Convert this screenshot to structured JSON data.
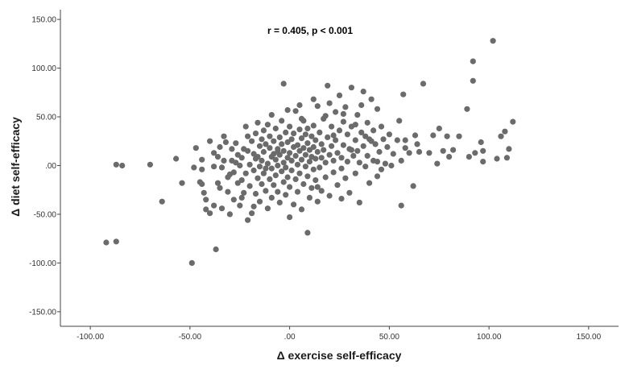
{
  "chart_data": {
    "type": "scatter",
    "annotation": "r = 0.405, p < 0.001",
    "xlabel": "Δ exercise self-efficacy",
    "ylabel": "Δ diet self-efficacy",
    "xlim": [
      -115,
      165
    ],
    "ylim": [
      -165,
      160
    ],
    "x_ticks": [
      -100,
      -50,
      0,
      50,
      100,
      150
    ],
    "x_tick_labels": [
      "-100.00",
      "-50.00",
      ".00",
      "50.00",
      "100.00",
      "150.00"
    ],
    "y_ticks": [
      150,
      100,
      50,
      0,
      -50,
      -100,
      -150
    ],
    "y_tick_labels": [
      "150.00",
      "100.00",
      "50.00",
      ".00",
      "-50.00",
      "-100.00",
      "-150.00"
    ],
    "grid": false,
    "legend": "none",
    "point_color": "#6b6b6b",
    "series": [
      {
        "points": [
          [
            -92,
            -79
          ],
          [
            -87,
            -78
          ],
          [
            -87,
            1
          ],
          [
            -84,
            0
          ],
          [
            -70,
            1
          ],
          [
            -64,
            -37
          ],
          [
            -57,
            7
          ],
          [
            -54,
            -18
          ],
          [
            -49,
            -100
          ],
          [
            -48,
            -2
          ],
          [
            -47,
            18
          ],
          [
            -45,
            -17
          ],
          [
            -44,
            6
          ],
          [
            -44,
            -4
          ],
          [
            -44,
            -19
          ],
          [
            -42,
            -35
          ],
          [
            -42,
            -45
          ],
          [
            -40,
            -49
          ],
          [
            -38,
            -1
          ],
          [
            -38,
            -41
          ],
          [
            -37,
            -86
          ],
          [
            -36,
            9
          ],
          [
            -35,
            -23
          ],
          [
            -34,
            -2
          ],
          [
            -34,
            -44
          ],
          [
            -33,
            5
          ],
          [
            -32,
            24
          ],
          [
            -31,
            -12
          ],
          [
            -31,
            -27
          ],
          [
            -30,
            -50
          ],
          [
            -29,
            17
          ],
          [
            -29,
            5
          ],
          [
            -28,
            -7
          ],
          [
            -28,
            -35
          ],
          [
            -27,
            23
          ],
          [
            -26,
            11
          ],
          [
            -26,
            -18
          ],
          [
            -25,
            0
          ],
          [
            -25,
            -41
          ],
          [
            -24,
            8
          ],
          [
            -24,
            -15
          ],
          [
            -23,
            17
          ],
          [
            -23,
            -28
          ],
          [
            -22,
            40
          ],
          [
            -22,
            -8
          ],
          [
            -21,
            -56
          ],
          [
            -21,
            30
          ],
          [
            -20,
            1
          ],
          [
            -20,
            -21
          ],
          [
            -19,
            25
          ],
          [
            -18,
            12
          ],
          [
            -18,
            -5
          ],
          [
            -18,
            -42
          ],
          [
            -17,
            33
          ],
          [
            -17,
            -29
          ],
          [
            -16,
            44
          ],
          [
            -16,
            9
          ],
          [
            -16,
            -13
          ],
          [
            -15,
            20
          ],
          [
            -15,
            -1
          ],
          [
            -15,
            -37
          ],
          [
            -14,
            27
          ],
          [
            -14,
            5
          ],
          [
            -14,
            -19
          ],
          [
            -13,
            36
          ],
          [
            -13,
            14
          ],
          [
            -13,
            -8
          ],
          [
            -12,
            22
          ],
          [
            -12,
            -26
          ],
          [
            -11,
            42
          ],
          [
            -11,
            2
          ],
          [
            -11,
            -44
          ],
          [
            -10,
            18
          ],
          [
            -10,
            -14
          ],
          [
            -10,
            30
          ],
          [
            -9,
            9
          ],
          [
            -9,
            -3
          ],
          [
            -9,
            -33
          ],
          [
            -8,
            25
          ],
          [
            -8,
            12
          ],
          [
            -8,
            -20
          ],
          [
            -7,
            6
          ],
          [
            -7,
            38
          ],
          [
            -7,
            -10
          ],
          [
            -6,
            17
          ],
          [
            -6,
            -27
          ],
          [
            -6,
            0
          ],
          [
            -5,
            29
          ],
          [
            -5,
            11
          ],
          [
            -5,
            -38
          ],
          [
            -4,
            22
          ],
          [
            -4,
            -6
          ],
          [
            -4,
            46
          ],
          [
            -3,
            3
          ],
          [
            -3,
            15
          ],
          [
            -3,
            -17
          ],
          [
            -2,
            34
          ],
          [
            -2,
            -2
          ],
          [
            -2,
            -30
          ],
          [
            -1,
            24
          ],
          [
            -1,
            8
          ],
          [
            -1,
            -12
          ],
          [
            0,
            40
          ],
          [
            0,
            13
          ],
          [
            0,
            -22
          ],
          [
            1,
            5
          ],
          [
            1,
            27
          ],
          [
            1,
            -5
          ],
          [
            2,
            19
          ],
          [
            2,
            -40
          ],
          [
            2,
            33
          ],
          [
            3,
            10
          ],
          [
            3,
            -14
          ],
          [
            3,
            56
          ],
          [
            4,
            21
          ],
          [
            4,
            1
          ],
          [
            4,
            -27
          ],
          [
            5,
            37
          ],
          [
            5,
            15
          ],
          [
            5,
            -8
          ],
          [
            6,
            28
          ],
          [
            6,
            6
          ],
          [
            6,
            -45
          ],
          [
            7,
            18
          ],
          [
            7,
            -19
          ],
          [
            7,
            46
          ],
          [
            8,
            11
          ],
          [
            8,
            -1
          ],
          [
            8,
            32
          ],
          [
            9,
            23
          ],
          [
            9,
            -11
          ],
          [
            9,
            -69
          ],
          [
            10,
            4
          ],
          [
            10,
            16
          ],
          [
            10,
            -33
          ],
          [
            11,
            30
          ],
          [
            11,
            9
          ],
          [
            11,
            -23
          ],
          [
            12,
            41
          ],
          [
            12,
            19
          ],
          [
            12,
            -4
          ],
          [
            13,
            26
          ],
          [
            13,
            7
          ],
          [
            13,
            -15
          ],
          [
            14,
            61
          ],
          [
            14,
            14
          ],
          [
            14,
            -37
          ],
          [
            15,
            34
          ],
          [
            15,
            -2
          ],
          [
            16,
            22
          ],
          [
            16,
            8
          ],
          [
            16,
            -26
          ],
          [
            17,
            48
          ],
          [
            17,
            16
          ],
          [
            18,
            3
          ],
          [
            18,
            -12
          ],
          [
            19,
            29
          ],
          [
            19,
            82
          ],
          [
            20,
            11
          ],
          [
            20,
            -31
          ],
          [
            21,
            40
          ],
          [
            21,
            20
          ],
          [
            22,
            5
          ],
          [
            22,
            -7
          ],
          [
            23,
            55
          ],
          [
            23,
            26
          ],
          [
            24,
            13
          ],
          [
            24,
            -20
          ],
          [
            25,
            36
          ],
          [
            25,
            72
          ],
          [
            26,
            8
          ],
          [
            26,
            -3
          ],
          [
            27,
            45
          ],
          [
            27,
            21
          ],
          [
            28,
            60
          ],
          [
            28,
            -13
          ],
          [
            29,
            32
          ],
          [
            29,
            4
          ],
          [
            30,
            17
          ],
          [
            30,
            -28
          ],
          [
            31,
            80
          ],
          [
            31,
            40
          ],
          [
            32,
            10
          ],
          [
            33,
            26
          ],
          [
            33,
            -8
          ],
          [
            34,
            52
          ],
          [
            34,
            15
          ],
          [
            35,
            3
          ],
          [
            35,
            -38
          ],
          [
            36,
            34
          ],
          [
            37,
            76
          ],
          [
            37,
            20
          ],
          [
            38,
            -1
          ],
          [
            39,
            44
          ],
          [
            39,
            10
          ],
          [
            40,
            27
          ],
          [
            40,
            -18
          ],
          [
            41,
            68
          ],
          [
            42,
            36
          ],
          [
            42,
            5
          ],
          [
            43,
            22
          ],
          [
            44,
            58
          ],
          [
            44,
            -11
          ],
          [
            45,
            14
          ],
          [
            46,
            40
          ],
          [
            47,
            27
          ],
          [
            48,
            2
          ],
          [
            49,
            19
          ],
          [
            50,
            32
          ],
          [
            52,
            12
          ],
          [
            54,
            26
          ],
          [
            55,
            46
          ],
          [
            56,
            5
          ],
          [
            56,
            -41
          ],
          [
            57,
            73
          ],
          [
            58,
            18
          ],
          [
            60,
            13
          ],
          [
            62,
            -21
          ],
          [
            64,
            22
          ],
          [
            65,
            14
          ],
          [
            67,
            84
          ],
          [
            70,
            13
          ],
          [
            72,
            31
          ],
          [
            74,
            2
          ],
          [
            75,
            38
          ],
          [
            77,
            15
          ],
          [
            79,
            30
          ],
          [
            80,
            9
          ],
          [
            82,
            16
          ],
          [
            89,
            58
          ],
          [
            90,
            9
          ],
          [
            92,
            87
          ],
          [
            92,
            107
          ],
          [
            93,
            13
          ],
          [
            96,
            24
          ],
          [
            97,
            15
          ],
          [
            97,
            4
          ],
          [
            102,
            128
          ],
          [
            104,
            7
          ],
          [
            106,
            30
          ],
          [
            108,
            35
          ],
          [
            109,
            8
          ],
          [
            110,
            17
          ],
          [
            112,
            45
          ],
          [
            -38,
            13
          ],
          [
            -36,
            -18
          ],
          [
            -33,
            30
          ],
          [
            -30,
            -9
          ],
          [
            -27,
            3
          ],
          [
            -24,
            -33
          ],
          [
            -19,
            -49
          ],
          [
            -17,
            7
          ],
          [
            -12,
            -3
          ],
          [
            -6,
            14
          ],
          [
            -3,
            84
          ],
          [
            0,
            -53
          ],
          [
            5,
            62
          ],
          [
            9,
            38
          ],
          [
            14,
            -22
          ],
          [
            18,
            51
          ],
          [
            22,
            31
          ],
          [
            26,
            -34
          ],
          [
            31,
            16
          ],
          [
            36,
            62
          ],
          [
            41,
            25
          ],
          [
            46,
            -4
          ],
          [
            51,
            0
          ],
          [
            58,
            26
          ],
          [
            -43,
            -28
          ],
          [
            -40,
            25
          ],
          [
            -35,
            19
          ],
          [
            -21,
            15
          ],
          [
            -9,
            52
          ],
          [
            -1,
            57
          ],
          [
            6,
            48
          ],
          [
            12,
            68
          ],
          [
            20,
            64
          ],
          [
            27,
            53
          ],
          [
            33,
            42
          ],
          [
            38,
            30
          ],
          [
            44,
            4
          ],
          [
            63,
            31
          ],
          [
            85,
            30
          ]
        ]
      }
    ]
  }
}
